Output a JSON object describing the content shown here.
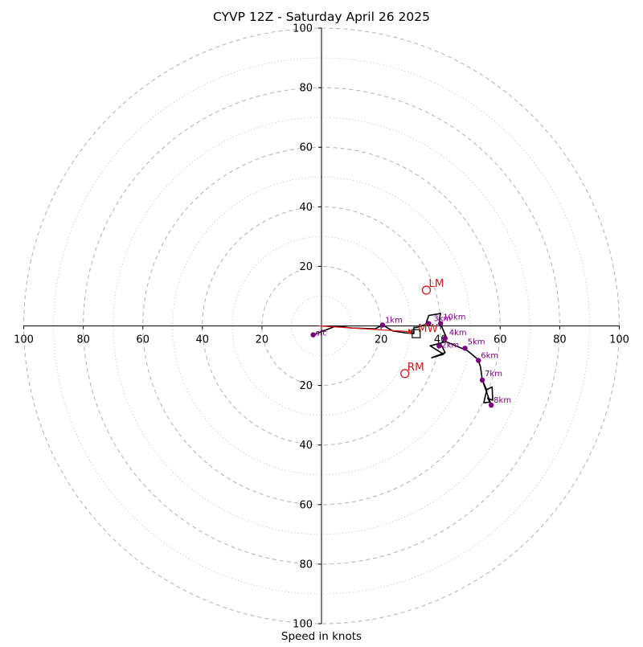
{
  "chart_data": {
    "type": "scatter",
    "title": "CYVP 12Z - Saturday April 26 2025",
    "xlabel": "Speed in knots",
    "ylabel": "",
    "xlim": [
      -100,
      100
    ],
    "ylim": [
      -100,
      100
    ],
    "rings_major": [
      20,
      40,
      60,
      80,
      100
    ],
    "rings_minor": [
      10,
      30,
      50,
      70,
      90
    ],
    "x_ticks": [
      "100",
      "80",
      "60",
      "40",
      "20",
      "20",
      "40",
      "60",
      "80",
      "100"
    ],
    "x_tick_values": [
      -100,
      -80,
      -60,
      -40,
      -20,
      20,
      40,
      60,
      80,
      100
    ],
    "y_ticks": [
      "100",
      "80",
      "60",
      "40",
      "20",
      "20",
      "40",
      "60",
      "80",
      "100"
    ],
    "y_tick_values": [
      100,
      80,
      60,
      40,
      20,
      -20,
      -40,
      -60,
      -80,
      -100
    ],
    "hodograph_trace": [
      [
        -2.8,
        -3
      ],
      [
        5,
        0
      ],
      [
        10,
        -0.7
      ],
      [
        18,
        -1
      ],
      [
        20.5,
        0.3
      ],
      [
        24,
        -1.7
      ],
      [
        28,
        -2.3
      ],
      [
        31,
        -2.6
      ],
      [
        31,
        -0.5
      ],
      [
        32,
        -0.5
      ],
      [
        35,
        0.5
      ],
      [
        36,
        3.5
      ],
      [
        39,
        4
      ],
      [
        40,
        4.2
      ],
      [
        39.5,
        2
      ],
      [
        41,
        -1.7
      ],
      [
        42,
        -4
      ],
      [
        40,
        -6
      ],
      [
        41.5,
        -9
      ],
      [
        37,
        -10.7
      ],
      [
        41,
        -9.5
      ],
      [
        36.5,
        -6.7
      ],
      [
        41.8,
        -5.3
      ],
      [
        49,
        -8.3
      ],
      [
        52.5,
        -11.2
      ],
      [
        53.4,
        -13.7
      ],
      [
        54,
        -18.3
      ],
      [
        54.5,
        -19.5
      ],
      [
        55.2,
        -21.5
      ],
      [
        57.3,
        -20.5
      ],
      [
        57.5,
        -25
      ],
      [
        55.8,
        -24.2
      ],
      [
        56.6,
        -25.6
      ],
      [
        54.5,
        -25.8
      ],
      [
        55.5,
        -21.5
      ],
      [
        54,
        -18.2
      ],
      [
        57,
        -26.6
      ]
    ],
    "height_points": [
      {
        "label": "sfc",
        "x": -2.8,
        "y": -3
      },
      {
        "label": "1km",
        "x": 20.5,
        "y": 0.3
      },
      {
        "label": "2km",
        "x": 39.5,
        "y": -6.7
      },
      {
        "label": "3km",
        "x": 36,
        "y": 0.8
      },
      {
        "label": "4km",
        "x": 41.5,
        "y": -4.2
      },
      {
        "label": "5km",
        "x": 48.2,
        "y": -7.5
      },
      {
        "label": "6km",
        "x": 52.7,
        "y": -11.6
      },
      {
        "label": "7km",
        "x": 54,
        "y": -18.2
      },
      {
        "label": "8km",
        "x": 57,
        "y": -26.6
      },
      {
        "label": "10km",
        "x": 40,
        "y": 0.8
      }
    ],
    "storm_motion": [
      {
        "label": "LM",
        "x": 35.2,
        "y": 12
      },
      {
        "label": "MW",
        "x": 31.8,
        "y": -2.6
      },
      {
        "label": "RM",
        "x": 28,
        "y": -16
      }
    ],
    "shear_vector": {
      "from": [
        -1,
        0
      ],
      "to": [
        31,
        -2
      ]
    },
    "colors": {
      "trace": "#000000",
      "height_points": "#7a0080",
      "storm_motion": "#cc1a1a",
      "shear_vector": "#e21b1b",
      "rings": "#b8b8b8"
    },
    "grid": true,
    "legend": "none"
  }
}
